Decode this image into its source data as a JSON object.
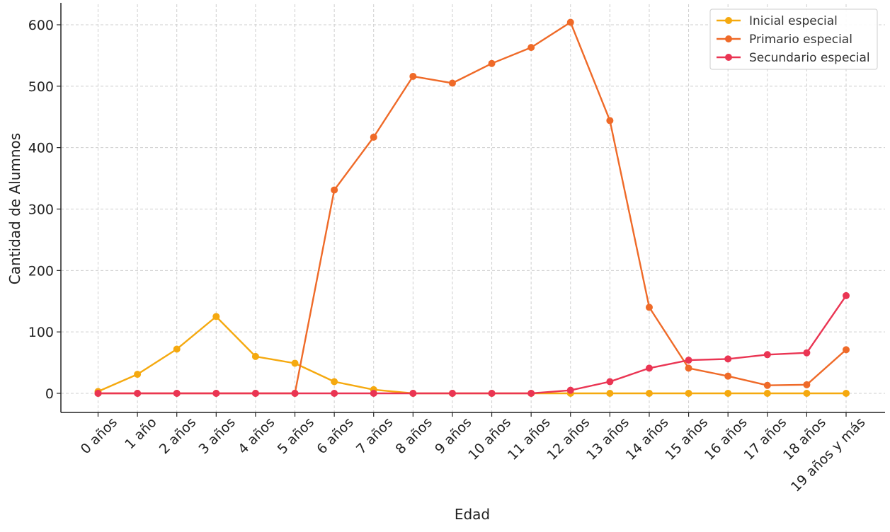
{
  "chart_data": {
    "type": "line",
    "title": "",
    "xlabel": "Edad",
    "ylabel": "Cantidad de Alumnos",
    "categories": [
      "0 años",
      "1 año",
      "2 años",
      "3 años",
      "4 años",
      "5 años",
      "6 años",
      "7 años",
      "8 años",
      "9 años",
      "10 años",
      "11 años",
      "12 años",
      "13 años",
      "14 años",
      "15 años",
      "16 años",
      "17 años",
      "18 años",
      "19 años y más"
    ],
    "ylim": [
      -30,
      635
    ],
    "yticks": [
      0,
      100,
      200,
      300,
      400,
      500,
      600
    ],
    "grid": true,
    "legend_position": "top-right",
    "series": [
      {
        "name": "Inicial especial",
        "color": "#f5a90f",
        "values": [
          3,
          31,
          72,
          125,
          60,
          49,
          19,
          6,
          0,
          0,
          0,
          0,
          0,
          0,
          0,
          0,
          0,
          0,
          0,
          0
        ]
      },
      {
        "name": "Primario especial",
        "color": "#ef6a28",
        "values": [
          0,
          0,
          0,
          0,
          0,
          0,
          331,
          417,
          516,
          505,
          537,
          563,
          604,
          444,
          140,
          41,
          28,
          13,
          14,
          71
        ]
      },
      {
        "name": "Secundario especial",
        "color": "#ea3553",
        "values": [
          0,
          0,
          0,
          0,
          0,
          0,
          0,
          0,
          0,
          0,
          0,
          0,
          5,
          19,
          41,
          54,
          56,
          63,
          66,
          159
        ]
      }
    ]
  }
}
